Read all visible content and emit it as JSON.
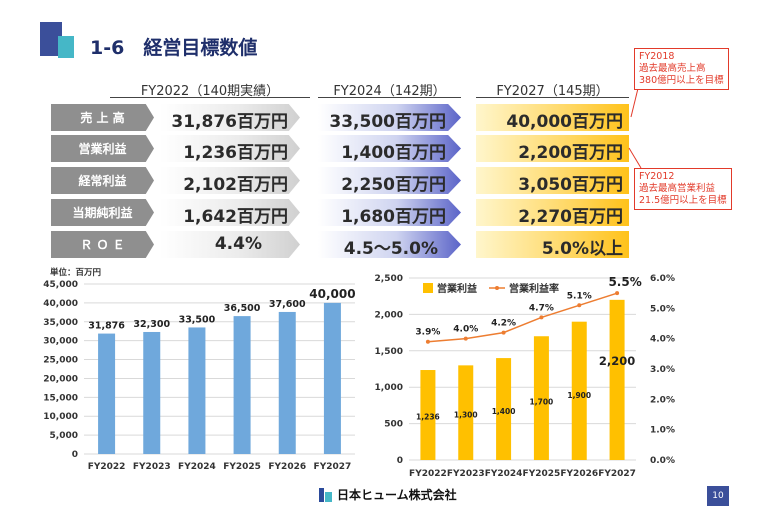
{
  "header": {
    "title": "1-6　経営目標数値"
  },
  "table": {
    "columns": [
      "FY2022（140期実績）",
      "FY2024（142期）",
      "FY2027（145期）"
    ],
    "rows": [
      {
        "label": "売 上 高",
        "fy2022": "31,876百万円",
        "fy2024": "33,500百万円",
        "fy2027": "40,000百万円"
      },
      {
        "label": "営業利益",
        "fy2022": "1,236百万円",
        "fy2024": "1,400百万円",
        "fy2027": "2,200百万円"
      },
      {
        "label": "経常利益",
        "fy2022": "2,102百万円",
        "fy2024": "2,250百万円",
        "fy2027": "3,050百万円"
      },
      {
        "label": "当期純利益",
        "fy2022": "1,642百万円",
        "fy2024": "1,680百万円",
        "fy2027": "2,270百万円"
      },
      {
        "label": "Ｒ Ｏ Ｅ",
        "fy2022": "4.4%",
        "fy2024": "4.5～5.0%",
        "fy2027": "5.0%以上"
      }
    ]
  },
  "callouts": {
    "sales": [
      "FY2018",
      "過去最高売上高",
      "380億円以上を目標"
    ],
    "profit": [
      "FY2012",
      "過去最高営業利益",
      "21.5億円以上を目標"
    ]
  },
  "chart_data": [
    {
      "type": "bar",
      "unit_label": "単位：百万円",
      "categories": [
        "FY2022",
        "FY2023",
        "FY2024",
        "FY2025",
        "FY2026",
        "FY2027"
      ],
      "values": [
        31876,
        32300,
        33500,
        36500,
        37600,
        40000
      ],
      "value_labels": [
        "31,876",
        "32,300",
        "33,500",
        "36,500",
        "37,600",
        "40,000"
      ],
      "ylim": [
        0,
        45000
      ],
      "yticks": [
        "0",
        "5,000",
        "10,000",
        "15,000",
        "20,000",
        "25,000",
        "30,000",
        "35,000",
        "40,000",
        "45,000"
      ],
      "bar_color": "#6fa8dc",
      "grid": true
    },
    {
      "type": "bar",
      "categories": [
        "FY2022",
        "FY2023",
        "FY2024",
        "FY2025",
        "FY2026",
        "FY2027"
      ],
      "series": [
        {
          "name": "営業利益",
          "type": "bar",
          "axis": "left",
          "values": [
            1236,
            1300,
            1400,
            1700,
            1900,
            2200
          ],
          "value_labels": [
            "1,236",
            "1,300",
            "1,400",
            "1,700",
            "1,900",
            "2,200"
          ],
          "color": "#ffc000"
        },
        {
          "name": "営業利益率",
          "type": "line",
          "axis": "right",
          "values": [
            3.9,
            4.0,
            4.2,
            4.7,
            5.1,
            5.5
          ],
          "value_labels": [
            "3.9%",
            "4.0%",
            "4.2%",
            "4.7%",
            "5.1%",
            "5.5%"
          ],
          "color": "#ed7d31"
        }
      ],
      "ylim_left": [
        0,
        2500
      ],
      "yticks_left": [
        "0",
        "500",
        "1,000",
        "1,500",
        "2,000",
        "2,500"
      ],
      "ylim_right": [
        0,
        6
      ],
      "yticks_right": [
        "0.0%",
        "1.0%",
        "2.0%",
        "3.0%",
        "4.0%",
        "5.0%",
        "6.0%"
      ],
      "legend_position": "top-left",
      "grid": true
    }
  ],
  "footer": {
    "company": "日本ヒューム株式会社",
    "page": "10"
  }
}
